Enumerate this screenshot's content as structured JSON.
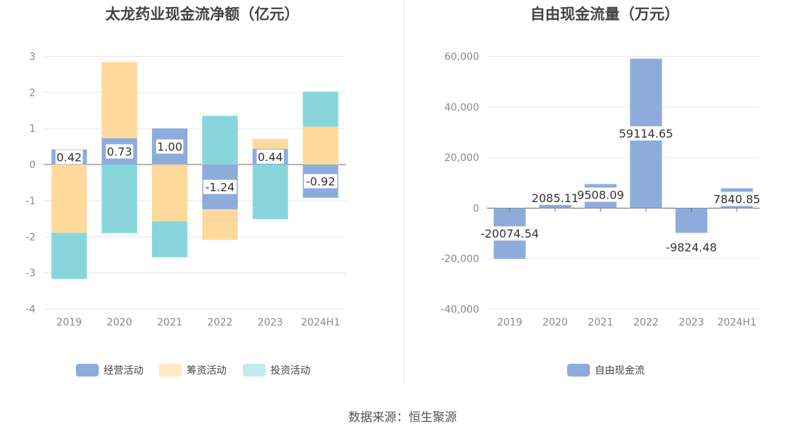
{
  "source_text": "数据来源：恒生聚源",
  "chart_data": [
    {
      "type": "bar",
      "stacked": true,
      "title": "太龙药业现金流净额（亿元）",
      "categories": [
        "2019",
        "2020",
        "2021",
        "2022",
        "2023",
        "2024H1"
      ],
      "ylim": [
        -4,
        3
      ],
      "yticks": [
        3,
        2,
        1,
        0,
        -1,
        -2,
        -3,
        -4
      ],
      "grid": true,
      "legend_position": "bottom-center",
      "series": [
        {
          "name": "经营活动",
          "color": "#8eacdb",
          "legend_color": "#8eacdb",
          "values": [
            0.42,
            0.73,
            1.0,
            -1.24,
            0.44,
            -0.92
          ]
        },
        {
          "name": "筹资活动",
          "color": "#fed99b",
          "legend_color": "#fee8c6",
          "values": [
            -1.89,
            2.11,
            -1.57,
            -0.85,
            0.27,
            1.05
          ]
        },
        {
          "name": "投资活动",
          "color": "#88d6db",
          "legend_color": "#c3eaed",
          "values": [
            -1.28,
            -1.9,
            -1.0,
            1.35,
            -1.51,
            0.97
          ]
        }
      ],
      "data_labels": [
        "0.42",
        "0.73",
        "1.00",
        "-1.24",
        "0.44",
        "-0.92"
      ]
    },
    {
      "type": "bar",
      "title": "自由现金流量（万元）",
      "categories": [
        "2019",
        "2020",
        "2021",
        "2022",
        "2023",
        "2024H1"
      ],
      "ylim": [
        -40000,
        60000
      ],
      "yticks": [
        "60,000",
        "40,000",
        "20,000",
        "0",
        "-20,000",
        "-40,000"
      ],
      "ytick_values": [
        60000,
        40000,
        20000,
        0,
        -20000,
        -40000
      ],
      "grid": true,
      "legend_position": "bottom-center",
      "series": [
        {
          "name": "自由现金流",
          "color": "#8eacdb",
          "values": [
            -20074.54,
            2085.11,
            9508.09,
            59114.65,
            -9824.48,
            7840.85
          ]
        }
      ],
      "data_labels": [
        "-20074.54",
        "2085.11",
        "9508.09",
        "59114.65",
        "-9824.48",
        "7840.85"
      ]
    }
  ]
}
